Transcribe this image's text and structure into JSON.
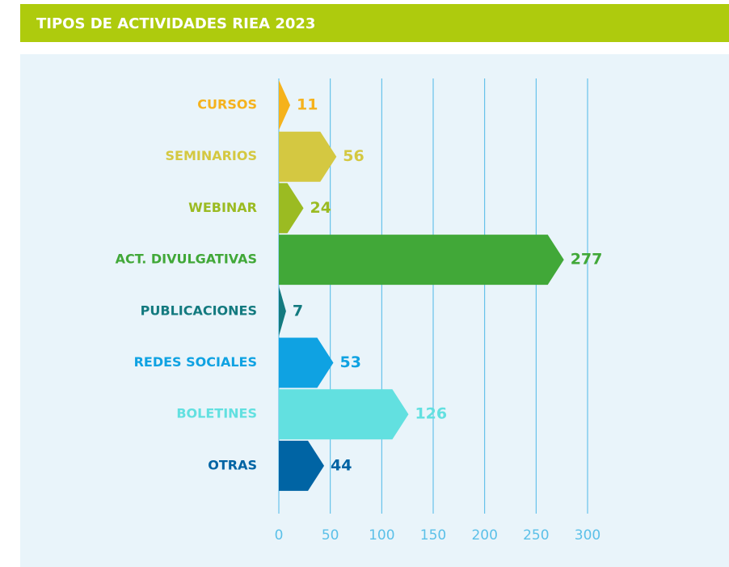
{
  "chart_data": {
    "type": "bar",
    "orientation": "horizontal",
    "title": "TIPOS DE ACTIVIDADES RIEA 2023",
    "categories": [
      "CURSOS",
      "SEMINARIOS",
      "WEBINAR",
      "ACT. DIVULGATIVAS",
      "PUBLICACIONES",
      "REDES SOCIALES",
      "BOLETINES",
      "OTRAS"
    ],
    "values": [
      11,
      56,
      24,
      277,
      7,
      53,
      126,
      44
    ],
    "colors": [
      "#f5b21c",
      "#d4c841",
      "#9bbb22",
      "#41a838",
      "#137a7f",
      "#0fa2e2",
      "#62e0e0",
      "#0064a4"
    ],
    "xlim": [
      0,
      300
    ],
    "xticks": [
      0,
      50,
      100,
      150,
      200,
      250,
      300
    ],
    "grid": true
  }
}
